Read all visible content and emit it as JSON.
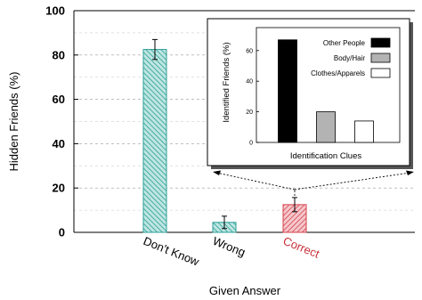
{
  "chart_data": [
    {
      "type": "bar",
      "xlabel": "Given Answer",
      "ylabel": "Hidden Friends (%)",
      "ylim": [
        0,
        100
      ],
      "yticks": [
        0,
        20,
        40,
        60,
        80,
        100
      ],
      "grid": "horizontal dashed",
      "categories": [
        "Don't Know",
        "Wrong",
        "Correct"
      ],
      "values": [
        82.5,
        4.5,
        12.5
      ],
      "errors": [
        4.5,
        2.8,
        3.2
      ],
      "colors": [
        "#2a9d96",
        "#2a9d96",
        "#d6404a"
      ],
      "fills": [
        "#bfe6e2",
        "#bfe6e2",
        "#f4c8cc"
      ],
      "label_colors": [
        "#000000",
        "#000000",
        "#c9303a"
      ]
    },
    {
      "type": "bar",
      "xlabel": "Identification Clues",
      "ylabel": "Identified Friends (%)",
      "ylim": [
        0,
        75
      ],
      "yticks": [
        0,
        20,
        40,
        60
      ],
      "grid": "off",
      "legend_position": "top-right",
      "categories": [
        "Other People",
        "Body/Hair",
        "Clothes/Apparels"
      ],
      "values": [
        67,
        20,
        14
      ],
      "colors": [
        "#000000",
        "#b3b3b3",
        "#ffffff"
      ]
    }
  ]
}
